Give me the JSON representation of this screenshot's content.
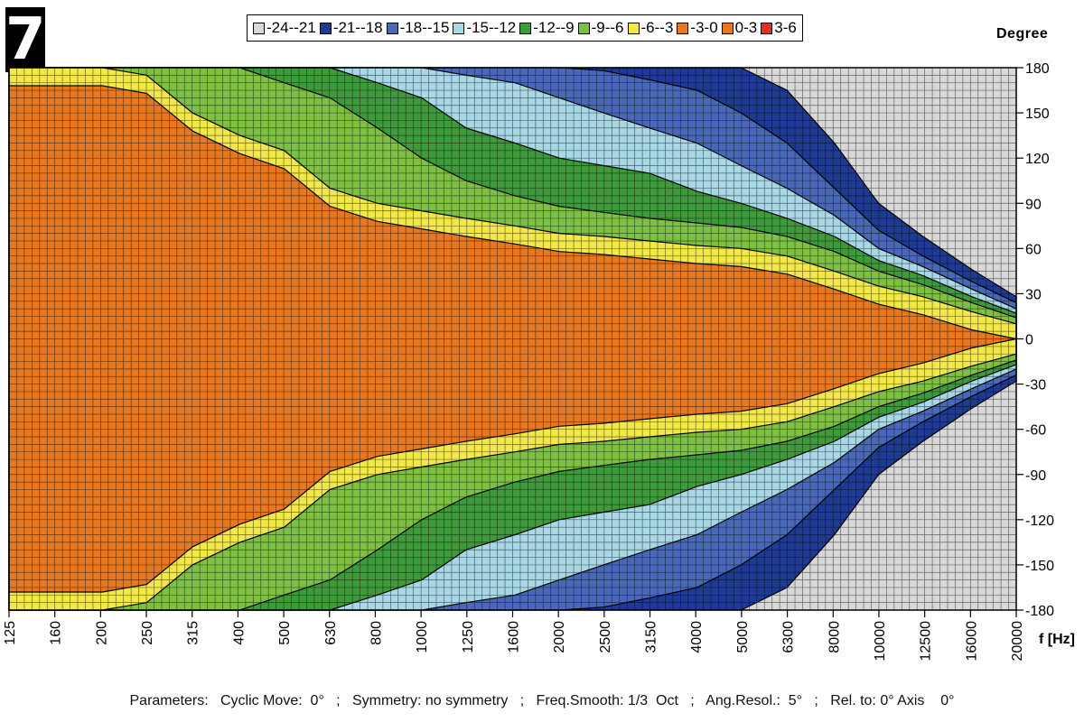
{
  "badge": "7",
  "chart_data": {
    "type": "heatmap",
    "legend": [
      {
        "label": "-24--21",
        "color": "#d8d8d8"
      },
      {
        "label": "-21--18",
        "color": "#1f3a93"
      },
      {
        "label": "-18--15",
        "color": "#4a68b8"
      },
      {
        "label": "-15--12",
        "color": "#a8d8e6"
      },
      {
        "label": "-12--9",
        "color": "#3e9a3a"
      },
      {
        "label": "-9--6",
        "color": "#7dc043"
      },
      {
        "label": "-6--3",
        "color": "#f2e84a"
      },
      {
        "label": "-3-0",
        "color": "#e87820"
      },
      {
        "label": "0-3",
        "color": "#e87820"
      },
      {
        "label": "3-6",
        "color": "#e0302a"
      }
    ],
    "ylabel": "Degree",
    "xlabel": "f [Hz]",
    "y_ticks": [
      180,
      150,
      120,
      90,
      60,
      30,
      0,
      -30,
      -60,
      -90,
      -120,
      -150,
      -180
    ],
    "ylim": [
      -180,
      180
    ],
    "x_ticks": [
      "125",
      "160",
      "200",
      "250",
      "315",
      "400",
      "500",
      "630",
      "800",
      "1000",
      "1250",
      "1600",
      "2000",
      "2500",
      "3150",
      "4000",
      "5000",
      "6300",
      "8000",
      "10000",
      "12500",
      "16000",
      "20000"
    ],
    "x_scale": "log",
    "grid": true,
    "beam_halfwidth_deg": {
      "frequencies": [
        125,
        160,
        200,
        250,
        315,
        400,
        500,
        630,
        800,
        1000,
        1250,
        1600,
        2000,
        2500,
        3150,
        4000,
        5000,
        6300,
        8000,
        10000,
        12500,
        16000,
        20000
      ],
      "contours": [
        {
          "level": "-6--3 upper",
          "values": [
            180,
            180,
            180,
            175,
            150,
            135,
            125,
            100,
            90,
            85,
            80,
            75,
            70,
            68,
            65,
            62,
            60,
            55,
            45,
            35,
            28,
            18,
            10
          ]
        },
        {
          "level": "-9--6 upper",
          "values": [
            180,
            180,
            180,
            180,
            180,
            180,
            170,
            160,
            140,
            120,
            105,
            95,
            88,
            84,
            80,
            77,
            74,
            68,
            58,
            45,
            36,
            24,
            14
          ]
        },
        {
          "level": "-12--9 upper",
          "values": [
            180,
            180,
            180,
            180,
            180,
            180,
            180,
            180,
            170,
            160,
            140,
            130,
            120,
            115,
            110,
            98,
            90,
            80,
            68,
            52,
            42,
            28,
            17
          ]
        },
        {
          "level": "-15--12 upper",
          "values": [
            180,
            180,
            180,
            180,
            180,
            180,
            180,
            180,
            180,
            180,
            175,
            170,
            160,
            150,
            140,
            130,
            115,
            100,
            82,
            60,
            48,
            33,
            20
          ]
        },
        {
          "level": "-18--15 upper",
          "values": [
            180,
            180,
            180,
            180,
            180,
            180,
            180,
            180,
            180,
            180,
            180,
            180,
            180,
            178,
            172,
            165,
            150,
            130,
            100,
            72,
            55,
            38,
            24
          ]
        },
        {
          "level": "-21--18 upper",
          "values": [
            180,
            180,
            180,
            180,
            180,
            180,
            180,
            180,
            180,
            180,
            180,
            180,
            180,
            180,
            180,
            180,
            180,
            165,
            130,
            90,
            68,
            46,
            28
          ]
        }
      ]
    }
  },
  "footer": "Parameters:   Cyclic Move:  0°   ;   Symmetry: no symmetry   ;   Freq.Smooth: 1/3  Oct   ;   Ang.Resol.:  5°   ;   Rel. to: 0° Axis    0°"
}
